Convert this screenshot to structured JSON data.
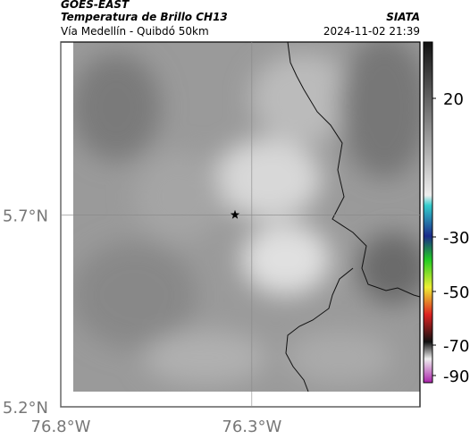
{
  "header": {
    "product": "GOES-EAST",
    "title": "Temperatura de Brillo CH13",
    "subtitle": "Vía Medellín - Quibdó 50km",
    "source": "SIATA",
    "date": "2024-11-02 21:39"
  },
  "map": {
    "xlim": [
      -76.8,
      -75.86
    ],
    "ylim": [
      5.2,
      6.15
    ],
    "xticks": [
      {
        "value": -76.8,
        "label": "76.8°W"
      },
      {
        "value": -76.3,
        "label": "76.3°W"
      }
    ],
    "yticks": [
      {
        "value": 5.2,
        "label": "5.2°N"
      },
      {
        "value": 5.7,
        "label": "5.7°N"
      }
    ],
    "marker": {
      "lon": -76.344,
      "lat": 5.7
    }
  },
  "colorbar": {
    "ticks": [
      20,
      -30,
      -50,
      -70,
      -90
    ]
  }
}
